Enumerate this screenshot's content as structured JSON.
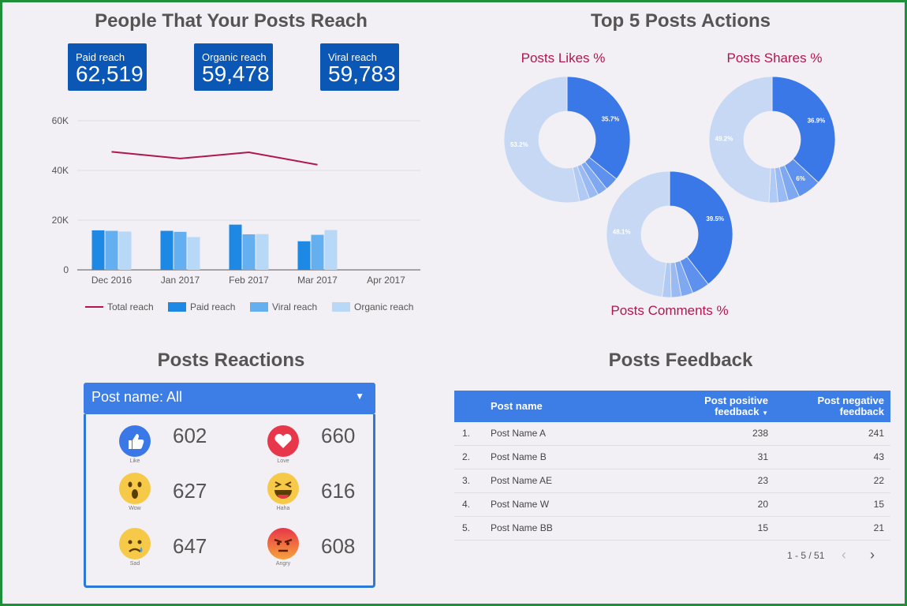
{
  "reach": {
    "title": "People That Your Posts Reach",
    "kpis": [
      {
        "label": "Paid reach",
        "value": "62,519"
      },
      {
        "label": "Organic reach",
        "value": "59,478"
      },
      {
        "label": "Viral reach",
        "value": "59,783"
      }
    ]
  },
  "chart_data": [
    {
      "type": "bar",
      "categories": [
        "Dec 2016",
        "Jan 2017",
        "Feb 2017",
        "Mar 2017",
        "Apr 2017"
      ],
      "y_ticks": [
        "0",
        "20K",
        "40K",
        "60K"
      ],
      "ylim": [
        0,
        60000
      ],
      "grid": true,
      "legend_position": "bottom",
      "series": [
        {
          "name": "Total reach",
          "type": "line",
          "color": "#b0174d",
          "values": [
            47500,
            44800,
            47300,
            42300,
            null
          ]
        },
        {
          "name": "Paid reach",
          "type": "bar",
          "color": "#1e88e5",
          "values": [
            15900,
            15700,
            18200,
            11500,
            null
          ]
        },
        {
          "name": "Viral reach",
          "type": "bar",
          "color": "#64aff0",
          "values": [
            15700,
            15300,
            14300,
            14100,
            null
          ]
        },
        {
          "name": "Organic reach",
          "type": "bar",
          "color": "#b7d8f7",
          "values": [
            15400,
            13200,
            14400,
            16000,
            null
          ]
        }
      ]
    },
    {
      "type": "pie",
      "title": "Posts Likes %",
      "slices": [
        35.7,
        3.5,
        2.6,
        2.4,
        2.6,
        53.2
      ],
      "slice_labels": [
        "35.7%",
        "",
        "",
        "",
        "",
        "53.2%"
      ]
    },
    {
      "type": "pie",
      "title": "Posts Shares %",
      "slices": [
        36.9,
        6,
        3,
        2.6,
        2.3,
        49.2
      ],
      "slice_labels": [
        "36.9%",
        "6%",
        "",
        "",
        "",
        "49.2%"
      ]
    },
    {
      "type": "pie",
      "title": "Posts Comments %",
      "slices": [
        39.5,
        4.5,
        3,
        2.6,
        2.3,
        48.1
      ],
      "slice_labels": [
        "39.5%",
        "",
        "",
        "",
        "",
        "48.1%"
      ]
    }
  ],
  "actions": {
    "title": "Top 5 Posts Actions",
    "slice_colors": [
      "#3b78e7",
      "#5d91ed",
      "#7ea8f0",
      "#99baf3",
      "#aecaf5",
      "#c6d8f4"
    ],
    "label_colors": [
      "#ffffff",
      "#ffffff",
      "#ffffff",
      "#ffffff",
      "#ffffff",
      "#ffffff"
    ],
    "title_color": "#b0174d"
  },
  "reactions": {
    "title": "Posts Reactions",
    "dropdown_label": "Post name: All",
    "items": [
      {
        "label": "Like",
        "count": "602",
        "icon": "like-icon",
        "color": "#3b78e7"
      },
      {
        "label": "Love",
        "count": "660",
        "icon": "love-icon",
        "color": "#e8364a"
      },
      {
        "label": "Wow",
        "count": "627",
        "icon": "wow-icon",
        "color": "#f7c948"
      },
      {
        "label": "Haha",
        "count": "616",
        "icon": "haha-icon",
        "color": "#f7c948"
      },
      {
        "label": "Sad",
        "count": "647",
        "icon": "sad-icon",
        "color": "#f7c948"
      },
      {
        "label": "Angry",
        "count": "608",
        "icon": "angry-icon",
        "color": "#f28a2e"
      }
    ]
  },
  "feedback": {
    "title": "Posts Feedback",
    "columns": {
      "name": "Post name",
      "positive": [
        "Post positive",
        "feedback"
      ],
      "negative": [
        "Post negative",
        "feedback"
      ]
    },
    "rows": [
      {
        "idx": "1.",
        "name": "Post Name A",
        "pos": "238",
        "neg": "241"
      },
      {
        "idx": "2.",
        "name": "Post Name B",
        "pos": "31",
        "neg": "43"
      },
      {
        "idx": "3.",
        "name": "Post Name AE",
        "pos": "23",
        "neg": "22"
      },
      {
        "idx": "4.",
        "name": "Post Name W",
        "pos": "20",
        "neg": "15"
      },
      {
        "idx": "5.",
        "name": "Post Name BB",
        "pos": "15",
        "neg": "21"
      }
    ],
    "pagination": "1 - 5 / 51"
  }
}
